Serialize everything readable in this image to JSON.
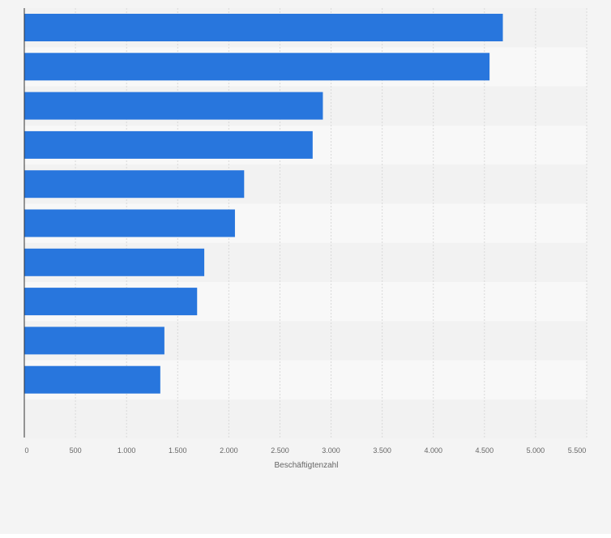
{
  "chart_data": {
    "type": "bar",
    "orientation": "horizontal",
    "categories": [
      "",
      "",
      "",
      "",
      "",
      "",
      "",
      "",
      "",
      ""
    ],
    "values": [
      4680,
      4550,
      2920,
      2820,
      2150,
      2060,
      1760,
      1690,
      1370,
      1330
    ],
    "xlabel": "Beschäftigtenzahl",
    "ylabel": "",
    "xlim": [
      0,
      5500
    ],
    "ticks": [
      0,
      500,
      1000,
      1500,
      2000,
      2500,
      3000,
      3500,
      4000,
      4500,
      5000,
      5500
    ],
    "tick_labels": [
      "0",
      "500",
      "1.000",
      "1.500",
      "2.000",
      "2.500",
      "3.000",
      "3.500",
      "4.000",
      "4.500",
      "5.000",
      "5.500"
    ],
    "grid": true,
    "legend": "none",
    "colors": {
      "bar": "#2876dd",
      "band_dark": "#f2f2f2",
      "band_light": "#f8f8f8",
      "grid": "#d9d9d9",
      "axis": "#333333",
      "text": "#666666",
      "background": "#f4f4f4"
    }
  }
}
